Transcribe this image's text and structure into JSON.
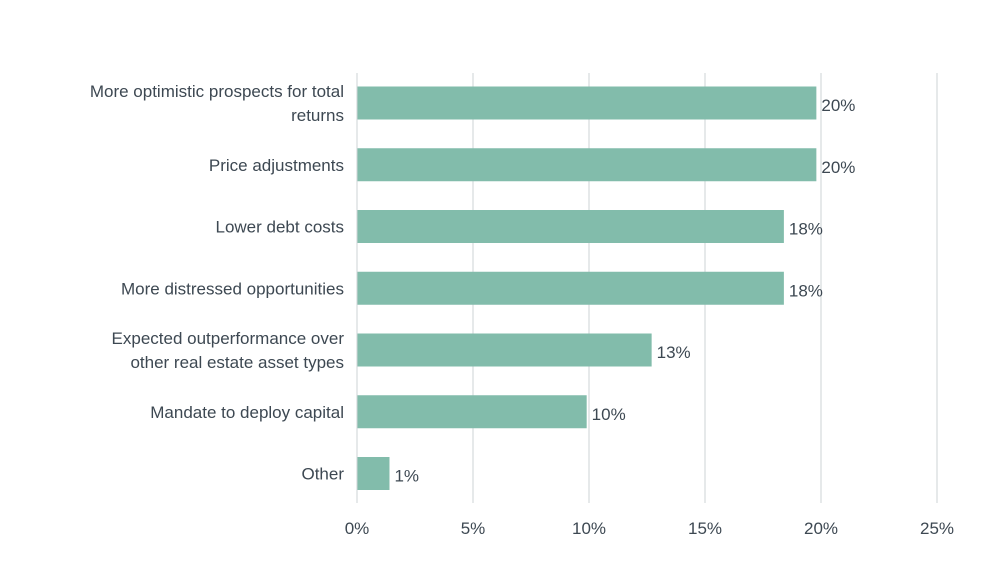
{
  "chart_data": {
    "type": "bar",
    "orientation": "horizontal",
    "categories": [
      "More optimistic prospects for total returns",
      "Price adjustments",
      "Lower debt costs",
      "More distressed opportunities",
      "Expected outperformance over other real estate asset types",
      "Mandate to deploy capital",
      "Other"
    ],
    "category_lines": [
      [
        "More optimistic prospects for total",
        "returns"
      ],
      [
        "Price adjustments"
      ],
      [
        "Lower debt costs"
      ],
      [
        "More distressed opportunities"
      ],
      [
        "Expected outperformance over",
        "other real estate asset types"
      ],
      [
        "Mandate to deploy capital"
      ],
      [
        "Other"
      ]
    ],
    "values": [
      19.8,
      19.8,
      18.4,
      18.4,
      12.7,
      9.9,
      1.4
    ],
    "value_labels": [
      "20%",
      "20%",
      "18%",
      "18%",
      "13%",
      "10%",
      "1%"
    ],
    "xlim": [
      0,
      25
    ],
    "xticks": [
      0,
      5,
      10,
      15,
      20,
      25
    ],
    "xtick_labels": [
      "0%",
      "5%",
      "10%",
      "15%",
      "20%",
      "25%"
    ],
    "title": "",
    "xlabel": "",
    "ylabel": "",
    "grid": true,
    "colors": {
      "bar": "#82bcab",
      "text": "#3d4852",
      "grid": "#cdd3d6"
    }
  }
}
